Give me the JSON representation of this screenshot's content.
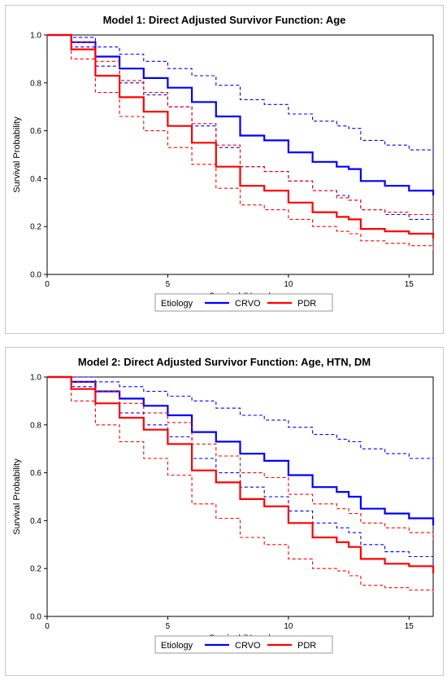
{
  "chart_data": [
    {
      "type": "line",
      "title": "Model 1: Direct Adjusted Survivor Function: Age",
      "xlabel": "Survival (Years)",
      "ylabel": "Survival Probability",
      "xlim": [
        0,
        16
      ],
      "ylim": [
        0,
        1
      ],
      "x_ticks": [
        0,
        5,
        10,
        15
      ],
      "y_ticks": [
        "0.0",
        "0.2",
        "0.4",
        "0.6",
        "0.8",
        "1.0"
      ],
      "grid": false,
      "legend": {
        "title": "Etiology",
        "position": "bottom",
        "entries": [
          "CRVO",
          "PDR"
        ]
      },
      "series": [
        {
          "name": "CRVO",
          "color": "#0000ff",
          "style": "solid",
          "x": [
            0,
            1,
            2,
            3,
            4,
            5,
            6,
            7,
            8,
            9,
            10,
            11,
            12,
            12.5,
            13,
            14,
            15,
            16
          ],
          "y": [
            1.0,
            0.97,
            0.91,
            0.86,
            0.82,
            0.78,
            0.72,
            0.66,
            0.58,
            0.56,
            0.51,
            0.47,
            0.45,
            0.44,
            0.39,
            0.37,
            0.35,
            0.33
          ]
        },
        {
          "name": "CRVO",
          "color": "#0000ff",
          "style": "dashed",
          "x": [
            0,
            1,
            2,
            3,
            4,
            5,
            6,
            7,
            8,
            9,
            10,
            11,
            12,
            12.5,
            13,
            14,
            15,
            16
          ],
          "y": [
            1.0,
            0.99,
            0.95,
            0.92,
            0.89,
            0.86,
            0.83,
            0.79,
            0.73,
            0.71,
            0.67,
            0.64,
            0.62,
            0.61,
            0.56,
            0.54,
            0.52,
            0.5
          ]
        },
        {
          "name": "CRVO",
          "color": "#0000ff",
          "style": "dashed",
          "x": [
            0,
            1,
            2,
            3,
            4,
            5,
            6,
            7,
            8,
            9,
            10,
            11,
            12,
            12.5,
            13,
            14,
            15,
            16
          ],
          "y": [
            1.0,
            0.95,
            0.87,
            0.8,
            0.75,
            0.7,
            0.62,
            0.53,
            0.45,
            0.43,
            0.39,
            0.35,
            0.33,
            0.31,
            0.27,
            0.25,
            0.23,
            0.21
          ]
        },
        {
          "name": "PDR",
          "color": "#ff0000",
          "style": "solid",
          "x": [
            0,
            1,
            2,
            3,
            4,
            5,
            6,
            7,
            8,
            9,
            10,
            11,
            12,
            12.5,
            13,
            14,
            15,
            16
          ],
          "y": [
            1.0,
            0.94,
            0.83,
            0.74,
            0.68,
            0.62,
            0.55,
            0.45,
            0.37,
            0.35,
            0.3,
            0.26,
            0.24,
            0.23,
            0.19,
            0.18,
            0.17,
            0.15
          ]
        },
        {
          "name": "PDR",
          "color": "#ff0000",
          "style": "dashed",
          "x": [
            0,
            1,
            2,
            3,
            4,
            5,
            6,
            7,
            8,
            9,
            10,
            11,
            12,
            12.5,
            13,
            14,
            15,
            16
          ],
          "y": [
            1.0,
            0.97,
            0.89,
            0.81,
            0.76,
            0.7,
            0.63,
            0.54,
            0.45,
            0.43,
            0.39,
            0.35,
            0.32,
            0.31,
            0.27,
            0.26,
            0.25,
            0.23
          ]
        },
        {
          "name": "PDR",
          "color": "#ff0000",
          "style": "dashed",
          "x": [
            0,
            1,
            2,
            3,
            4,
            5,
            6,
            7,
            8,
            9,
            10,
            11,
            12,
            12.5,
            13,
            14,
            15,
            16
          ],
          "y": [
            1.0,
            0.9,
            0.76,
            0.66,
            0.6,
            0.53,
            0.46,
            0.36,
            0.29,
            0.27,
            0.23,
            0.2,
            0.18,
            0.17,
            0.14,
            0.13,
            0.12,
            0.1
          ]
        }
      ]
    },
    {
      "type": "line",
      "title": "Model 2: Direct Adjusted Survivor Function: Age, HTN, DM",
      "xlabel": "Survival (Years)",
      "ylabel": "Survival Probability",
      "xlim": [
        0,
        16
      ],
      "ylim": [
        0,
        1
      ],
      "x_ticks": [
        0,
        5,
        10,
        15
      ],
      "y_ticks": [
        "0.0",
        "0.2",
        "0.4",
        "0.6",
        "0.8",
        "1.0"
      ],
      "grid": false,
      "legend": {
        "title": "Etiology",
        "position": "bottom",
        "entries": [
          "CRVO",
          "PDR"
        ]
      },
      "series": [
        {
          "name": "CRVO",
          "color": "#0000ff",
          "style": "solid",
          "x": [
            0,
            1,
            2,
            3,
            4,
            5,
            6,
            7,
            8,
            9,
            10,
            11,
            12,
            12.5,
            13,
            14,
            15,
            16
          ],
          "y": [
            1.0,
            0.98,
            0.94,
            0.91,
            0.88,
            0.84,
            0.77,
            0.73,
            0.68,
            0.65,
            0.59,
            0.54,
            0.52,
            0.5,
            0.45,
            0.43,
            0.41,
            0.38
          ]
        },
        {
          "name": "CRVO",
          "color": "#0000ff",
          "style": "dashed",
          "x": [
            0,
            1,
            2,
            3,
            4,
            5,
            6,
            7,
            8,
            9,
            10,
            11,
            12,
            12.5,
            13,
            14,
            15,
            16
          ],
          "y": [
            1.0,
            1.0,
            0.98,
            0.96,
            0.94,
            0.92,
            0.9,
            0.87,
            0.84,
            0.82,
            0.79,
            0.76,
            0.74,
            0.73,
            0.7,
            0.68,
            0.66,
            0.63
          ]
        },
        {
          "name": "CRVO",
          "color": "#0000ff",
          "style": "dashed",
          "x": [
            0,
            1,
            2,
            3,
            4,
            5,
            6,
            7,
            8,
            9,
            10,
            11,
            12,
            12.5,
            13,
            14,
            15,
            16
          ],
          "y": [
            1.0,
            0.96,
            0.89,
            0.85,
            0.8,
            0.75,
            0.66,
            0.6,
            0.54,
            0.5,
            0.44,
            0.39,
            0.37,
            0.35,
            0.3,
            0.27,
            0.25,
            0.22
          ]
        },
        {
          "name": "PDR",
          "color": "#ff0000",
          "style": "solid",
          "x": [
            0,
            1,
            2,
            3,
            4,
            5,
            6,
            7,
            8,
            9,
            10,
            11,
            12,
            12.5,
            13,
            14,
            15,
            16
          ],
          "y": [
            1.0,
            0.95,
            0.89,
            0.83,
            0.78,
            0.72,
            0.61,
            0.56,
            0.49,
            0.46,
            0.39,
            0.33,
            0.31,
            0.29,
            0.24,
            0.22,
            0.21,
            0.18
          ]
        },
        {
          "name": "PDR",
          "color": "#ff0000",
          "style": "dashed",
          "x": [
            0,
            1,
            2,
            3,
            4,
            5,
            6,
            7,
            8,
            9,
            10,
            11,
            12,
            12.5,
            13,
            14,
            15,
            16
          ],
          "y": [
            1.0,
            0.98,
            0.94,
            0.89,
            0.85,
            0.81,
            0.72,
            0.67,
            0.6,
            0.58,
            0.51,
            0.47,
            0.45,
            0.43,
            0.39,
            0.37,
            0.35,
            0.32
          ]
        },
        {
          "name": "PDR",
          "color": "#ff0000",
          "style": "dashed",
          "x": [
            0,
            1,
            2,
            3,
            4,
            5,
            6,
            7,
            8,
            9,
            10,
            11,
            12,
            12.5,
            13,
            14,
            15,
            16
          ],
          "y": [
            1.0,
            0.9,
            0.8,
            0.73,
            0.66,
            0.59,
            0.47,
            0.41,
            0.33,
            0.3,
            0.24,
            0.2,
            0.19,
            0.17,
            0.13,
            0.12,
            0.11,
            0.09
          ]
        }
      ]
    }
  ]
}
